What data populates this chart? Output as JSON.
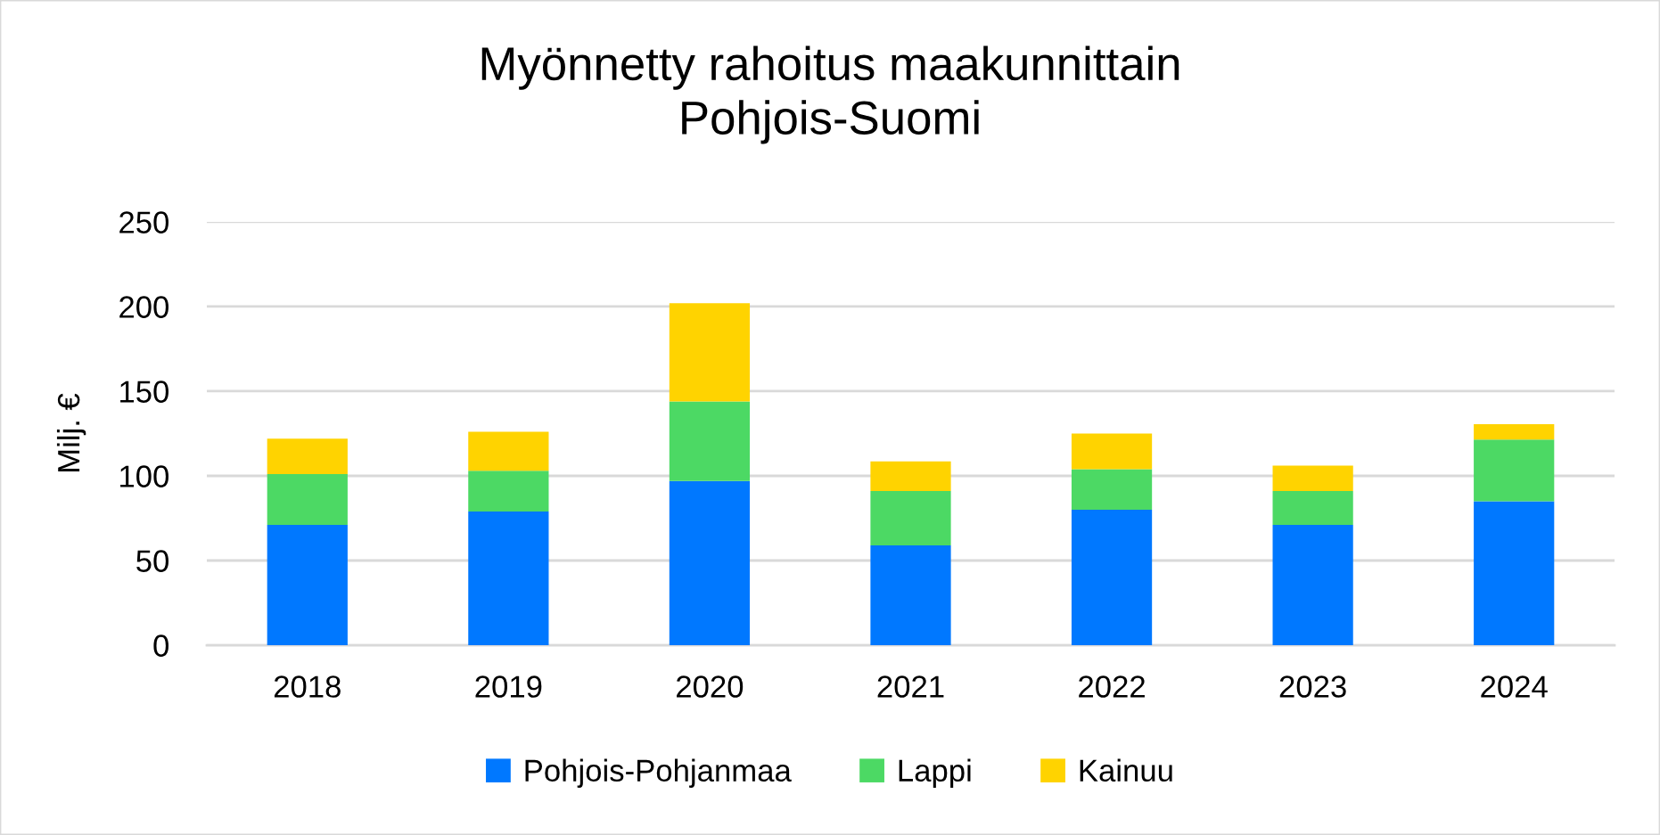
{
  "chart_data": {
    "type": "bar",
    "title": "Myönnetty rahoitus maakunnittain\nPohjois-Suomi",
    "ylabel": "Milj. €",
    "categories": [
      "2018",
      "2019",
      "2020",
      "2021",
      "2022",
      "2023",
      "2024"
    ],
    "series": [
      {
        "name": "Pohjois-Pohjanmaa",
        "color": "#0078ff",
        "values": [
          71,
          79,
          97,
          59,
          80,
          71,
          85
        ]
      },
      {
        "name": "Lappi",
        "color": "#4cd964",
        "values": [
          30,
          24,
          47,
          32,
          24,
          20,
          36.5
        ]
      },
      {
        "name": "Kainuu",
        "color": "#ffd300",
        "values": [
          21,
          23,
          58,
          17.5,
          21,
          15,
          9
        ]
      }
    ],
    "stacked": true,
    "ylim": [
      0,
      250
    ],
    "yticks": [
      0,
      50,
      100,
      150,
      200,
      250
    ],
    "grid": "y",
    "legend": "bottom"
  }
}
